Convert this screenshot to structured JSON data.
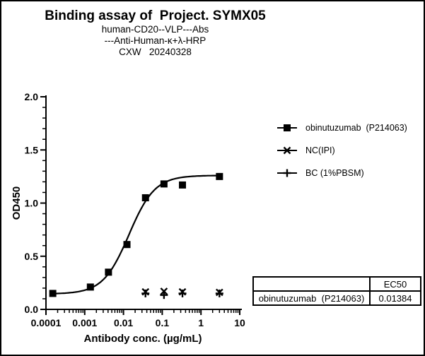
{
  "window": {
    "background": "#ffffff",
    "border_color": "#000000",
    "ink_color": "#000000"
  },
  "header": {
    "title": "Binding assay of  Project. SYMX05",
    "subtitle_lines": [
      "human-CD20--VLP---Abs",
      "---Anti-Human-κ+λ-HRP",
      "CXW   20240328"
    ]
  },
  "chart_data": {
    "type": "scatter",
    "title": "Binding assay of  Project. SYMX05",
    "xlabel": "Antibody conc. (µg/mL)",
    "ylabel": "OD450",
    "x_scale": "log",
    "xlim": [
      0.0001,
      10
    ],
    "ylim": [
      0.0,
      2.0
    ],
    "grid": false,
    "legend_position": "right",
    "x_tick_labels": [
      "0.0001",
      "0.001",
      "0.01",
      "0.1",
      "1",
      "10"
    ],
    "y_tick_labels": [
      "0.0",
      "0.5",
      "1.0",
      "1.5",
      "2.0"
    ],
    "y_major_step": 0.5,
    "y_minor_step": 0.1,
    "series": [
      {
        "name": "obinutuzumab  (P214063)",
        "marker": "square",
        "x": [
          0.00015,
          0.0014,
          0.0041,
          0.0123,
          0.037,
          0.111,
          0.333,
          3
        ],
        "y": [
          0.15,
          0.21,
          0.35,
          0.61,
          1.05,
          1.18,
          1.17,
          1.25
        ],
        "fit": {
          "type": "4PL",
          "bottom": 0.145,
          "top": 1.26,
          "ec50": 0.01384,
          "hill": 1.3
        }
      },
      {
        "name": "NC(IPI)",
        "marker": "x",
        "x": [
          0.037,
          0.111,
          0.333,
          3
        ],
        "y": [
          0.165,
          0.17,
          0.165,
          0.16
        ]
      },
      {
        "name": "BC (1%PBSM)",
        "marker": "plus",
        "x": [
          0.037,
          0.111,
          0.333,
          3
        ],
        "y": [
          0.15,
          0.135,
          0.15,
          0.15
        ]
      }
    ]
  },
  "legend": {
    "items": [
      {
        "label": "obinutuzumab  (P214063)",
        "marker": "square"
      },
      {
        "label": "NC(IPI)",
        "marker": "x"
      },
      {
        "label": "BC (1%PBSM)",
        "marker": "plus"
      }
    ]
  },
  "results_table": {
    "header": [
      "",
      "EC50"
    ],
    "rows": [
      [
        "obinutuzumab  (P214063)",
        "0.01384"
      ]
    ]
  }
}
